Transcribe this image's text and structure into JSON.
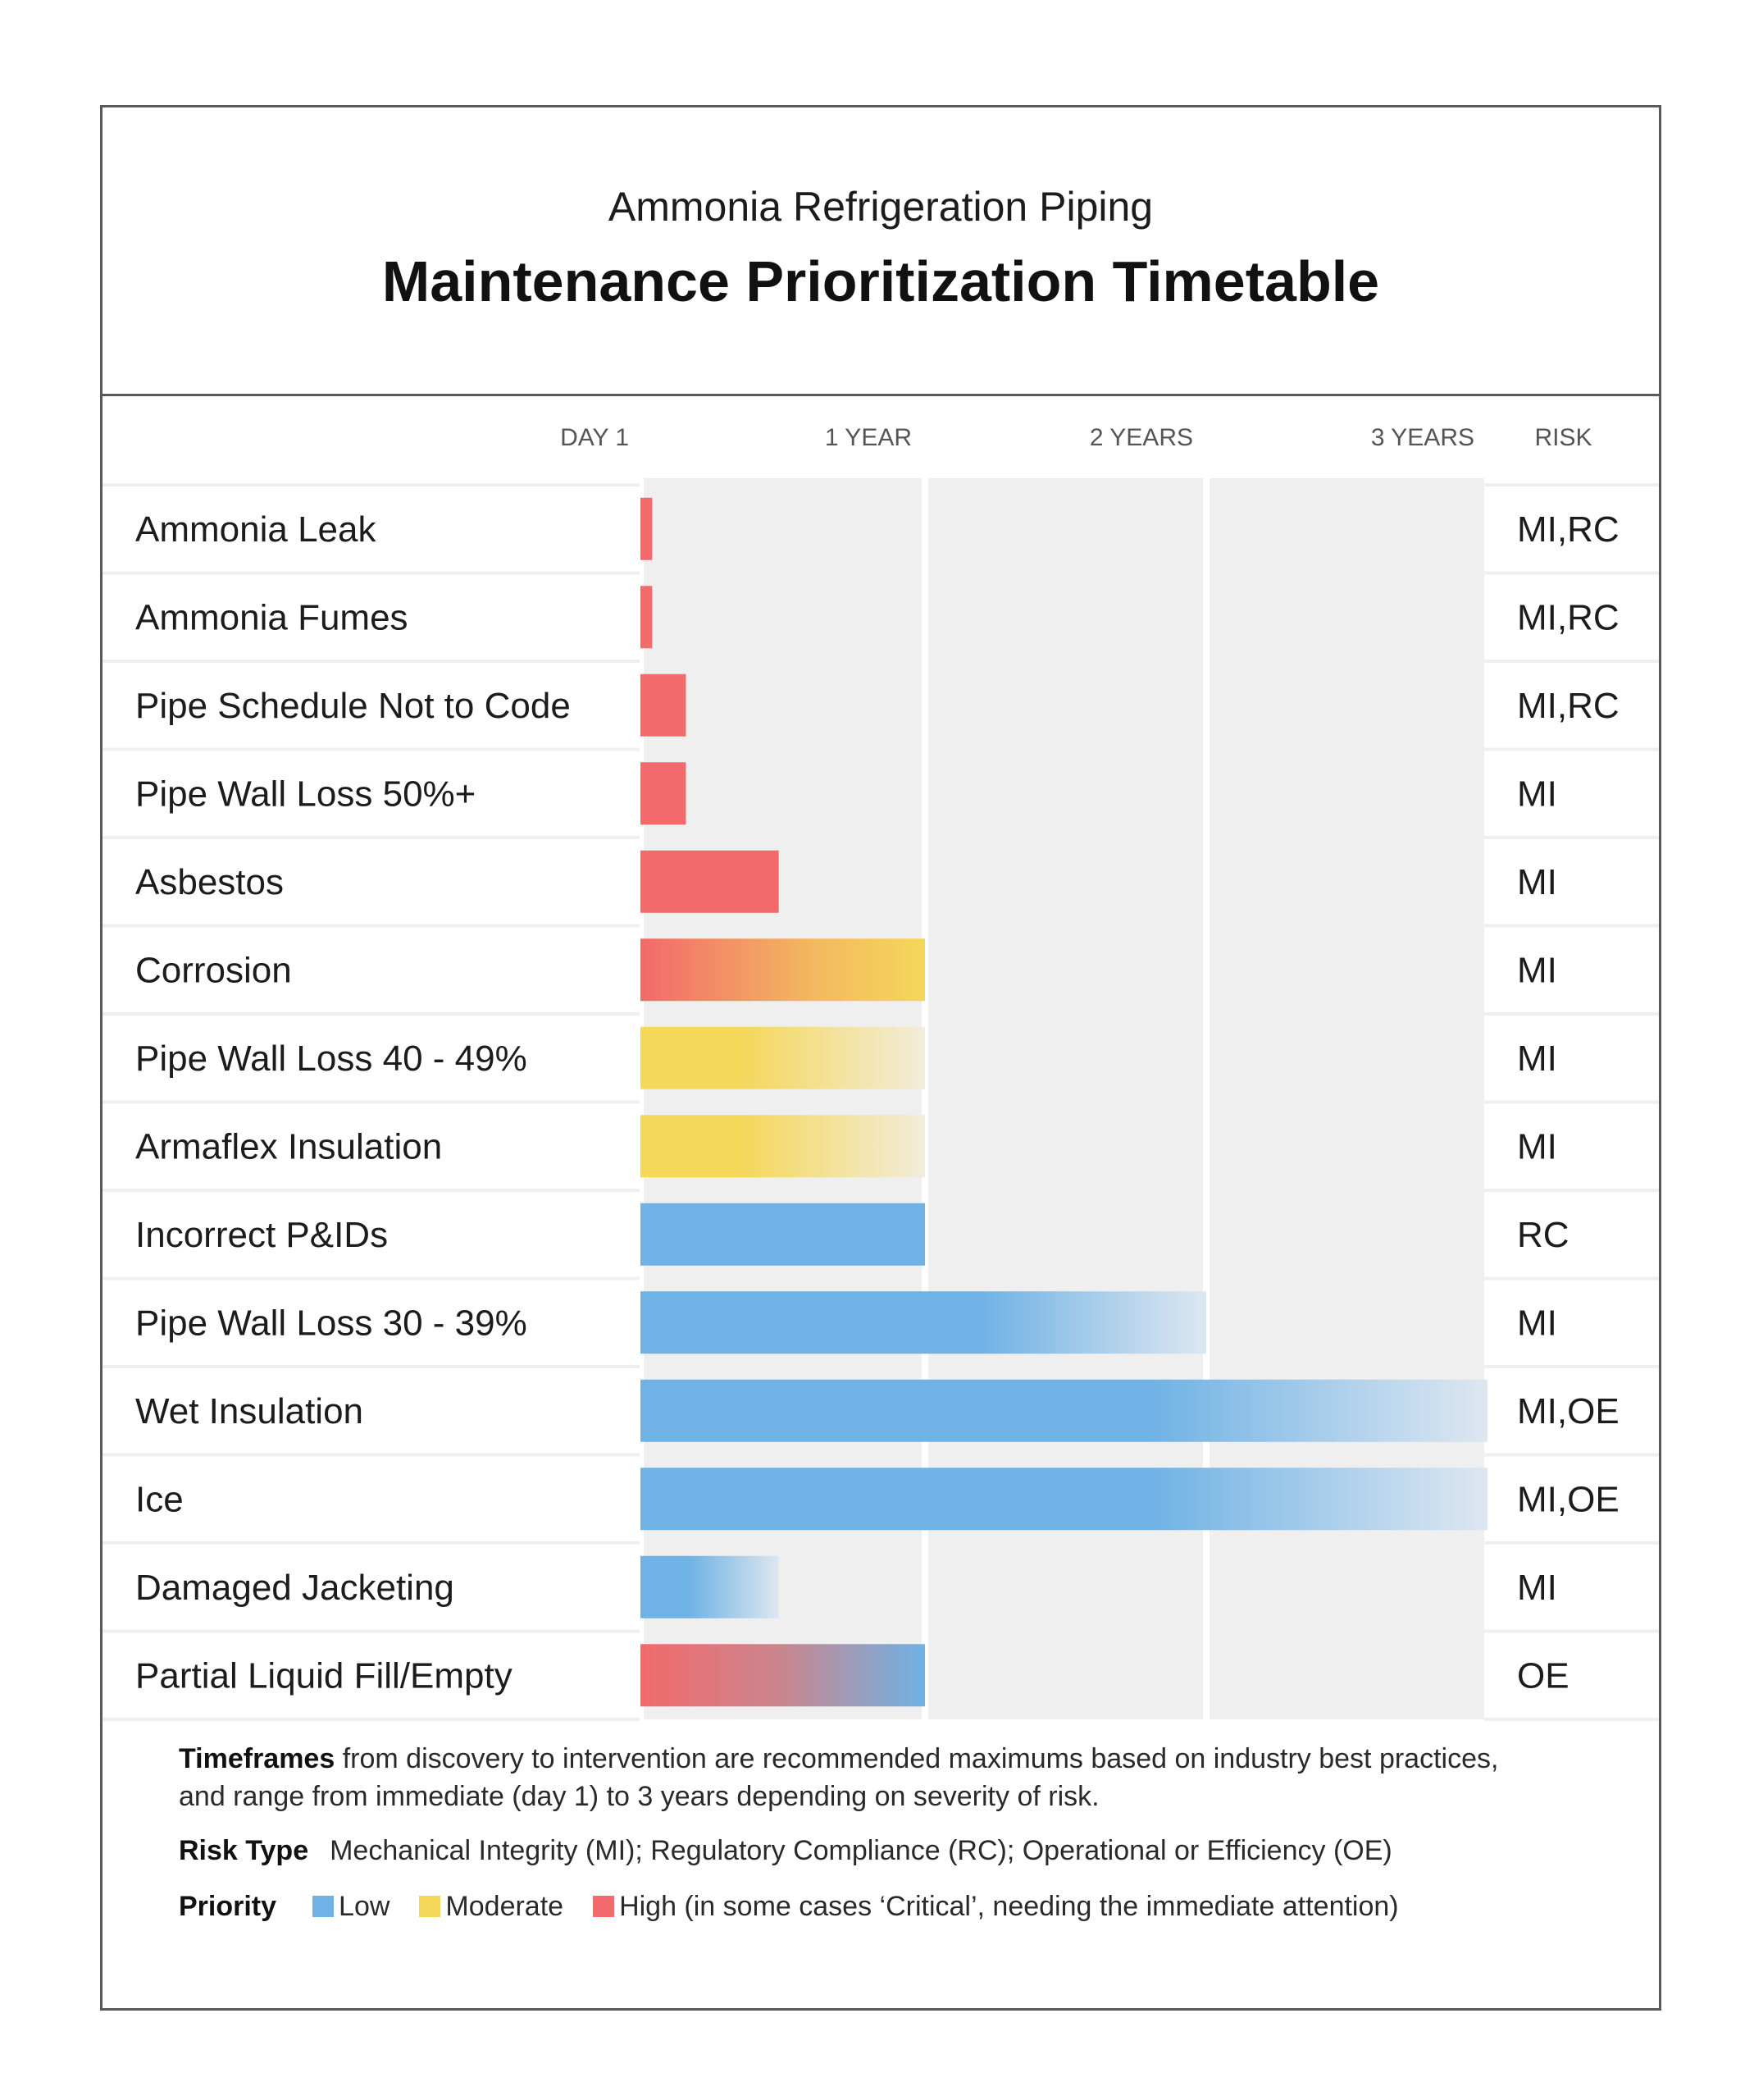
{
  "header": {
    "subtitle": "Ammonia Refrigeration Piping",
    "title": "Maintenance Prioritization Timetable"
  },
  "chart_data": {
    "type": "bar",
    "orientation": "horizontal",
    "title": "Maintenance Prioritization Timetable",
    "subtitle": "Ammonia Refrigeration Piping",
    "x_unit": "years",
    "xlim": [
      0,
      3
    ],
    "x_ticks": [
      {
        "value": 0,
        "label": "DAY 1"
      },
      {
        "value": 1,
        "label": "1 YEAR"
      },
      {
        "value": 2,
        "label": "2 YEARS"
      },
      {
        "value": 3,
        "label": "3 YEARS"
      }
    ],
    "risk_header": "RISK",
    "colors": {
      "high": "#F26A6B",
      "moderate": "#F5D75A",
      "low": "#6FB2E5",
      "fade": "#EDEDED"
    },
    "rows": [
      {
        "label": "Ammonia Leak",
        "end": 0.03,
        "style": "high",
        "risk": "MI,RC"
      },
      {
        "label": "Ammonia Fumes",
        "end": 0.03,
        "style": "high",
        "risk": "MI,RC"
      },
      {
        "label": "Pipe Schedule Not to Code",
        "end": 0.15,
        "style": "high",
        "risk": "MI,RC"
      },
      {
        "label": "Pipe Wall Loss 50%+",
        "end": 0.15,
        "style": "high",
        "risk": "MI"
      },
      {
        "label": "Asbestos",
        "end": 0.48,
        "style": "high",
        "risk": "MI"
      },
      {
        "label": "Corrosion",
        "end": 1.0,
        "style": "high-to-moderate",
        "risk": "MI"
      },
      {
        "label": "Pipe Wall Loss 40 - 49%",
        "end": 1.0,
        "style": "moderate-fade",
        "risk": "MI"
      },
      {
        "label": "Armaflex Insulation",
        "end": 1.0,
        "style": "moderate-fade",
        "risk": "MI"
      },
      {
        "label": "Incorrect P&IDs",
        "end": 1.0,
        "style": "low",
        "risk": "RC"
      },
      {
        "label": "Pipe Wall Loss 30 - 39%",
        "end": 2.0,
        "style": "low-fade",
        "risk": "MI"
      },
      {
        "label": "Wet Insulation",
        "end": 3.0,
        "style": "low-fade",
        "risk": "MI,OE"
      },
      {
        "label": "Ice",
        "end": 3.0,
        "style": "low-fade",
        "risk": "MI,OE"
      },
      {
        "label": "Damaged Jacketing",
        "end": 0.48,
        "style": "low-fade",
        "risk": "MI"
      },
      {
        "label": "Partial Liquid Fill/Empty",
        "end": 1.0,
        "style": "high-to-low",
        "risk": "OE"
      }
    ]
  },
  "notes": {
    "timeframes_bold": "Timeframes",
    "timeframes_text_1": " from discovery to intervention are recommended maximums based on industry best practices,",
    "timeframes_text_2": "and range from immediate (day 1) to 3 years depending on severity of risk.",
    "risk_type_bold": "Risk Type",
    "risk_type_text": "Mechanical Integrity (MI); Regulatory Compliance (RC); Operational or Efficiency (OE)",
    "priority_bold": "Priority",
    "legend": [
      {
        "label": "Low",
        "color": "#6FB2E5"
      },
      {
        "label": "Moderate",
        "color": "#F5D75A"
      },
      {
        "label": "High (in some cases ‘Critical’, needing the immediate attention)",
        "color": "#F26A6B"
      }
    ]
  }
}
